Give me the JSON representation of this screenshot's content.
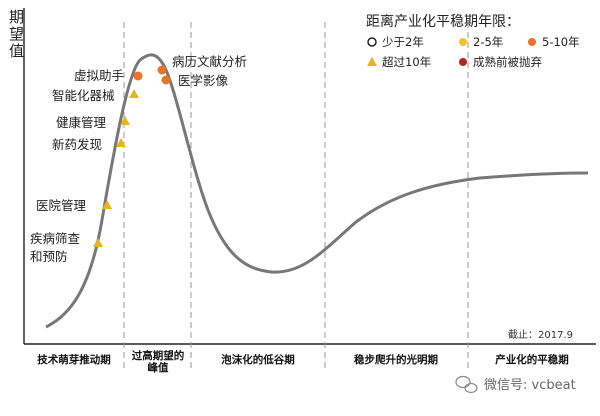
{
  "y_axis_label": "期望值",
  "legend": {
    "title": "距离产业化平稳期年限：",
    "items": [
      {
        "label": "少于2年",
        "marker": "ring",
        "color": "#222222"
      },
      {
        "label": "2-5年",
        "marker": "dot",
        "color": "#f2c12e"
      },
      {
        "label": "5-10年",
        "marker": "dot",
        "color": "#e8732a"
      },
      {
        "label": "超过10年",
        "marker": "triangle",
        "color": "#e6b422"
      },
      {
        "label": "成熟前被抛弃",
        "marker": "dot",
        "color": "#b3261e"
      }
    ]
  },
  "phases": [
    "技术萌芽推动期",
    "过高期望的\n峰值",
    "泡沫化的低谷期",
    "稳步爬升的光明期",
    "产业化的平稳期"
  ],
  "technologies": [
    {
      "label": "疾病筛查\n和预防",
      "marker": "triangle",
      "color": "#e6b422"
    },
    {
      "label": "医院管理",
      "marker": "triangle",
      "color": "#e6b422"
    },
    {
      "label": "新药发现",
      "marker": "triangle",
      "color": "#e6b422"
    },
    {
      "label": "健康管理",
      "marker": "triangle",
      "color": "#e6b422"
    },
    {
      "label": "智能化器械",
      "marker": "triangle",
      "color": "#e6b422"
    },
    {
      "label": "虚拟助手",
      "marker": "dot",
      "color": "#e8732a"
    },
    {
      "label": "病历文献分析",
      "marker": "dot",
      "color": "#e8732a"
    },
    {
      "label": "医学影像",
      "marker": "dot",
      "color": "#e8732a"
    }
  ],
  "cutoff_note": "截止：2017.9",
  "watermark": "微信号: vcbeat",
  "colors": {
    "curve": "#777777",
    "divider": "#9a9a9a",
    "axis": "#222222"
  }
}
